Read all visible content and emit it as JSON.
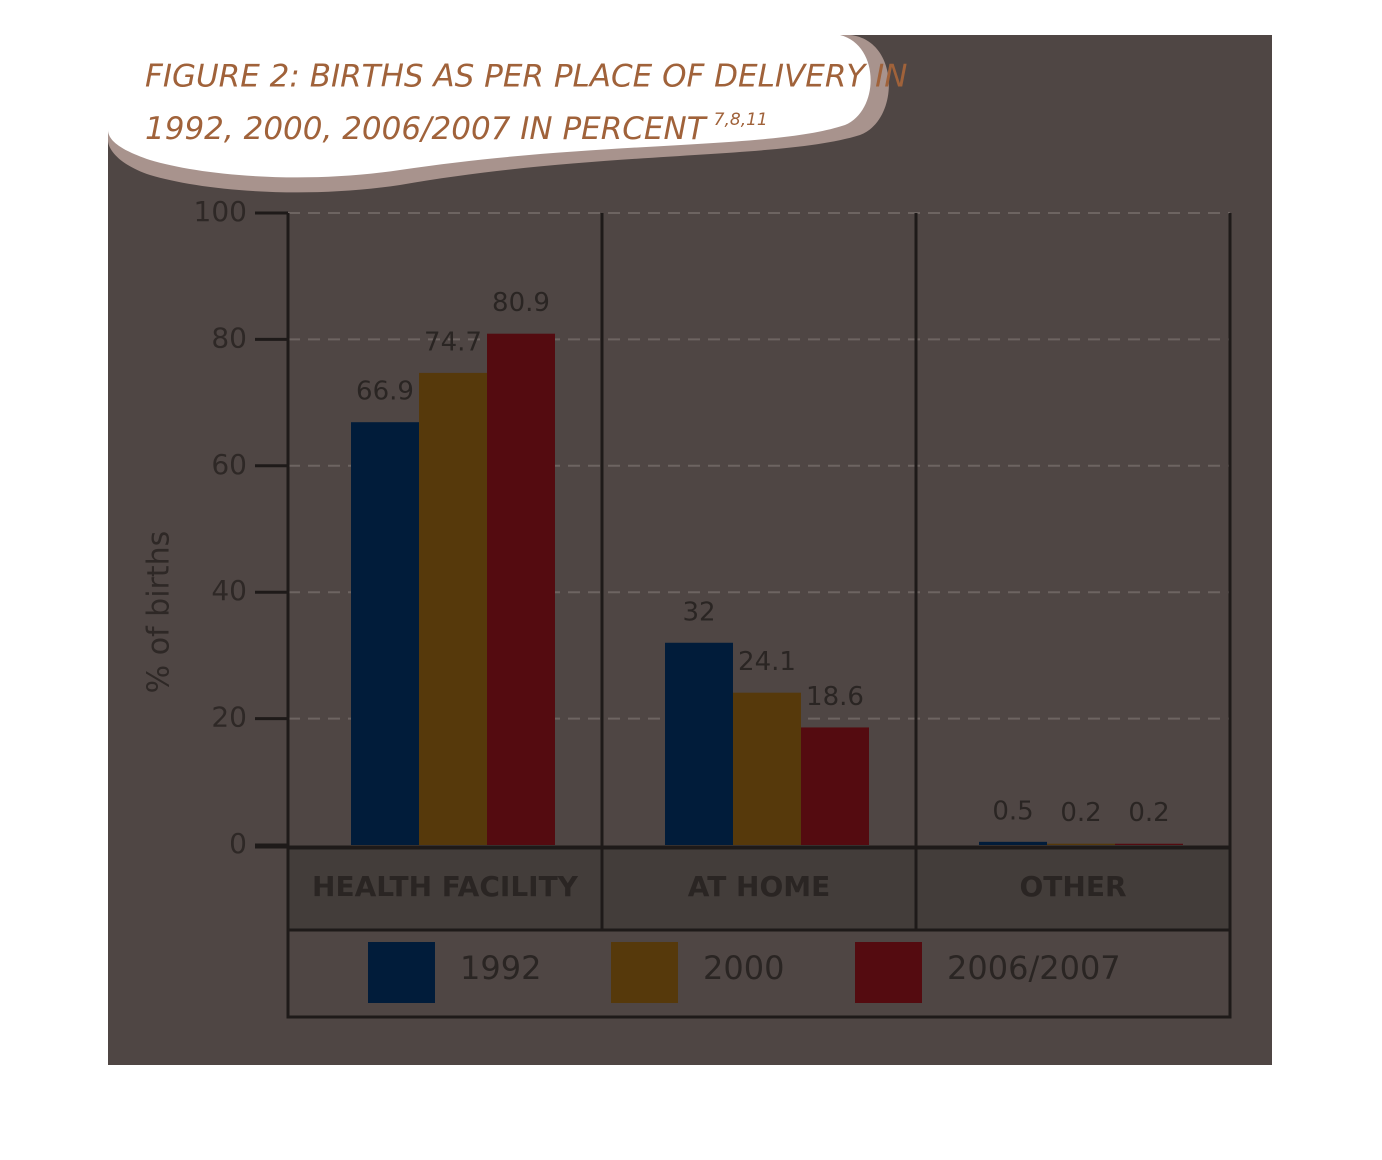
{
  "chart_data": {
    "type": "bar",
    "title": [
      "FIGURE 2: BIRTHS AS PER PLACE OF DELIVERY IN",
      "1992, 2000, 2006/2007 IN PERCENT"
    ],
    "title_superscript": "7,8,11",
    "y_label": "% of births",
    "categories": [
      "HEALTH FACILITY",
      "AT HOME",
      "OTHER"
    ],
    "series": [
      {
        "name": "1992",
        "color": "#011c3a",
        "values": [
          66.9,
          32,
          0.5
        ]
      },
      {
        "name": "2000",
        "color": "#56390b",
        "values": [
          74.7,
          24.1,
          0.2
        ]
      },
      {
        "name": "2006/2007",
        "color": "#540b10",
        "values": [
          80.9,
          18.6,
          0.2
        ]
      }
    ],
    "ylim": [
      0,
      100
    ],
    "yticks": [
      0,
      20,
      40,
      60,
      80,
      100
    ],
    "grid": true
  }
}
